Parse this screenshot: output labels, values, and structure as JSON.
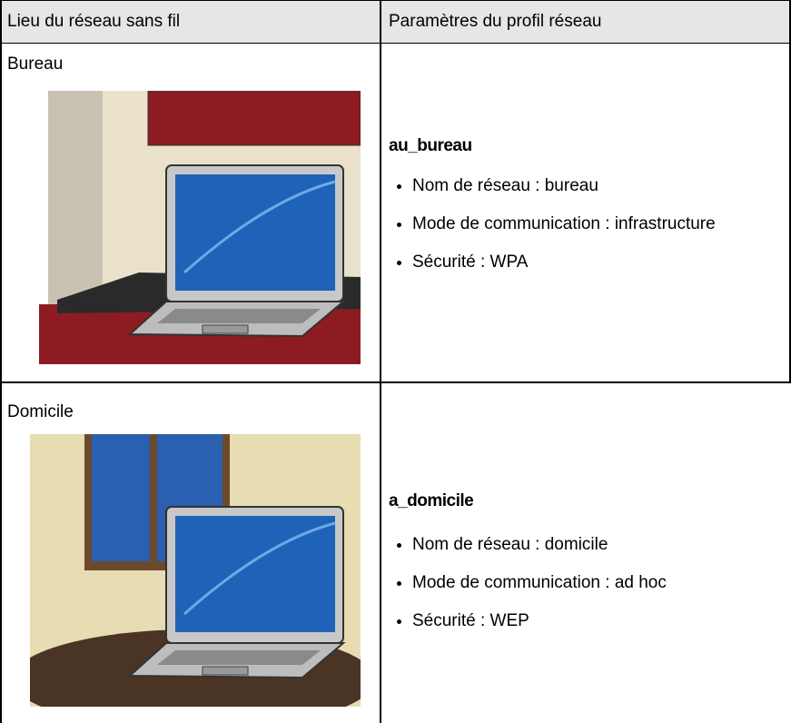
{
  "table": {
    "headers": [
      "Lieu du réseau sans fil",
      "Paramètres du profil réseau"
    ],
    "rows": [
      {
        "location": "Bureau",
        "profile": "au_bureau",
        "settings": [
          "Nom de réseau : bureau",
          "Mode de communication : infrastructure",
          "Sécurité : WPA"
        ]
      },
      {
        "location": "Domicile",
        "profile": "a_domicile",
        "settings": [
          "Nom de réseau : domicile",
          "Mode de communication : ad hoc",
          "Sécurité : WEP"
        ]
      }
    ]
  }
}
